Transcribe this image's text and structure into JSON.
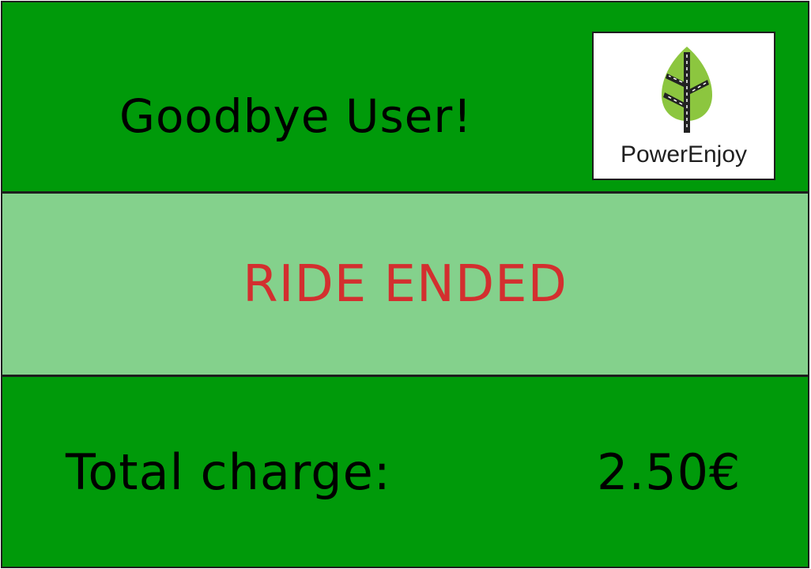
{
  "colors": {
    "panel_dark_green": "#009a0a",
    "panel_light_green": "#84d18c",
    "text_black": "#000000",
    "status_red": "#d32f2f",
    "logo_leaf_green": "#8cc63f",
    "logo_road_dark": "#222222"
  },
  "header": {
    "greeting": "Goodbye User!",
    "logo": {
      "icon": "leaf-road-icon",
      "brand_name": "PowerEnjoy"
    }
  },
  "status": {
    "message": "RIDE ENDED"
  },
  "summary": {
    "charge_label": "Total charge:",
    "charge_value": "2.50€"
  }
}
